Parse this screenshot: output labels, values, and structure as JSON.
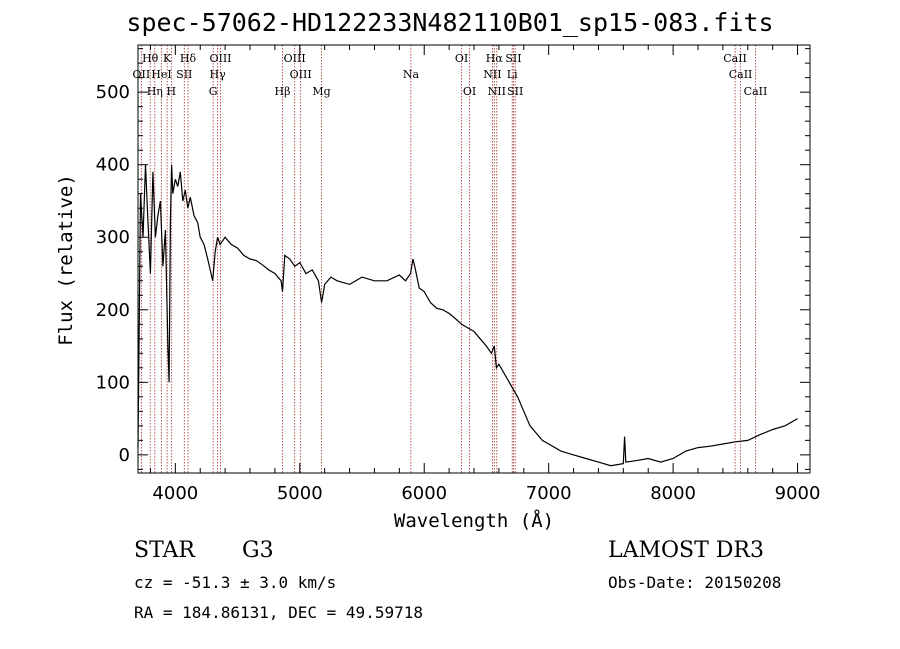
{
  "chart_data": {
    "type": "line",
    "title": "spec-57062-HD122233N482110B01_sp15-083.fits",
    "xlabel": "Wavelength (Å)",
    "ylabel": "Flux (relative)",
    "xlim": [
      3700,
      9100
    ],
    "ylim": [
      -25,
      565
    ],
    "xticks": [
      "4000",
      "5000",
      "6000",
      "7000",
      "8000",
      "9000"
    ],
    "yticks": [
      "0",
      "100",
      "200",
      "300",
      "400",
      "500"
    ],
    "spectrum": {
      "x": [
        3700,
        3720,
        3740,
        3760,
        3780,
        3800,
        3820,
        3840,
        3860,
        3880,
        3900,
        3920,
        3940,
        3950,
        3960,
        3970,
        3980,
        4000,
        4020,
        4040,
        4060,
        4080,
        4100,
        4120,
        4150,
        4180,
        4200,
        4230,
        4260,
        4300,
        4320,
        4340,
        4360,
        4400,
        4450,
        4500,
        4550,
        4600,
        4650,
        4700,
        4750,
        4800,
        4850,
        4861,
        4880,
        4920,
        4960,
        5000,
        5050,
        5100,
        5150,
        5175,
        5200,
        5250,
        5300,
        5400,
        5500,
        5600,
        5700,
        5800,
        5850,
        5890,
        5910,
        5930,
        5960,
        6000,
        6050,
        6100,
        6150,
        6200,
        6250,
        6300,
        6350,
        6400,
        6450,
        6500,
        6540,
        6563,
        6580,
        6600,
        6650,
        6700,
        6750,
        6800,
        6850,
        6900,
        6950,
        7000,
        7100,
        7200,
        7300,
        7400,
        7500,
        7600,
        7610,
        7620,
        7700,
        7800,
        7900,
        8000,
        8100,
        8200,
        8300,
        8400,
        8500,
        8600,
        8700,
        8800,
        8900,
        9000
      ],
      "y": [
        10,
        360,
        300,
        400,
        320,
        250,
        390,
        300,
        330,
        350,
        260,
        310,
        150,
        100,
        320,
        400,
        360,
        380,
        370,
        390,
        350,
        365,
        340,
        355,
        330,
        320,
        300,
        290,
        270,
        240,
        280,
        300,
        290,
        300,
        290,
        285,
        275,
        270,
        268,
        262,
        255,
        250,
        240,
        225,
        275,
        270,
        260,
        265,
        250,
        255,
        240,
        210,
        235,
        245,
        240,
        235,
        245,
        240,
        240,
        248,
        240,
        250,
        270,
        255,
        230,
        225,
        210,
        202,
        200,
        195,
        188,
        180,
        175,
        170,
        160,
        150,
        140,
        150,
        120,
        125,
        110,
        95,
        80,
        60,
        40,
        30,
        20,
        15,
        5,
        0,
        -5,
        -10,
        -15,
        -12,
        25,
        -10,
        -8,
        -5,
        -10,
        -5,
        5,
        10,
        12,
        15,
        18,
        20,
        28,
        35,
        40,
        50
      ]
    },
    "lines": [
      {
        "label": "Hθ",
        "x": 3798,
        "row": 0
      },
      {
        "label": "K",
        "x": 3934,
        "row": 0
      },
      {
        "label": "Hδ",
        "x": 4102,
        "row": 0
      },
      {
        "label": "OIII",
        "x": 4363,
        "row": 0
      },
      {
        "label": "OIII",
        "x": 4959,
        "row": 0
      },
      {
        "label": "OI",
        "x": 6300,
        "row": 0
      },
      {
        "label": "Hα",
        "x": 6563,
        "row": 0
      },
      {
        "label": "SII",
        "x": 6717,
        "row": 0
      },
      {
        "label": "CaII",
        "x": 8498,
        "row": 0
      },
      {
        "label": "OII",
        "x": 3727,
        "row": 1
      },
      {
        "label": "HeI",
        "x": 3889,
        "row": 1
      },
      {
        "label": "SII",
        "x": 4072,
        "row": 1
      },
      {
        "label": "Hγ",
        "x": 4340,
        "row": 1
      },
      {
        "label": "OIII",
        "x": 5007,
        "row": 1
      },
      {
        "label": "Na",
        "x": 5893,
        "row": 1
      },
      {
        "label": "NII",
        "x": 6548,
        "row": 1
      },
      {
        "label": "Li",
        "x": 6707,
        "row": 1
      },
      {
        "label": "CaII",
        "x": 8542,
        "row": 1
      },
      {
        "label": "Hη",
        "x": 3835,
        "row": 2
      },
      {
        "label": "H",
        "x": 3968,
        "row": 2
      },
      {
        "label": "G",
        "x": 4304,
        "row": 2
      },
      {
        "label": "Hβ",
        "x": 4861,
        "row": 2
      },
      {
        "label": "Mg",
        "x": 5175,
        "row": 2
      },
      {
        "label": "OI",
        "x": 6364,
        "row": 2
      },
      {
        "label": "NII",
        "x": 6583,
        "row": 2
      },
      {
        "label": "SII",
        "x": 6731,
        "row": 2
      },
      {
        "label": "CaII",
        "x": 8662,
        "row": 2
      }
    ]
  },
  "info": {
    "class": "STAR",
    "subclass": "G3",
    "survey": "LAMOST DR3",
    "cz": "cz = -51.3 ± 3.0 km/s",
    "obs_date": "Obs-Date: 20150208",
    "coords": "RA = 184.86131, DEC =  49.59718"
  },
  "colors": {
    "line_marker": "#a8322d",
    "spectrum": "#000000",
    "axes": "#000000"
  }
}
